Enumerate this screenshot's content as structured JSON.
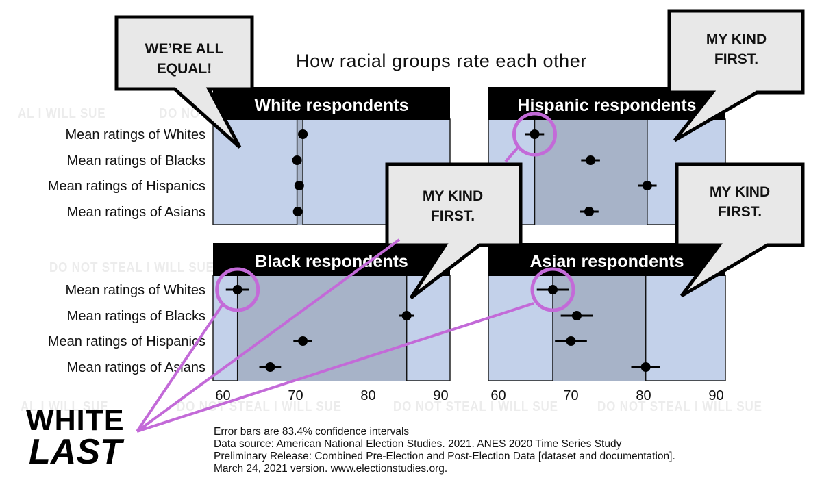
{
  "title": "How racial groups rate each other",
  "watermark": "DO NOT STEAL I WILL SUE",
  "watermark_partial": "AL I WILL SUE",
  "bubbles": [
    {
      "id": "white",
      "lines": [
        "WE’RE ALL",
        "EQUAL!"
      ]
    },
    {
      "id": "hispanic",
      "lines": [
        "MY KIND",
        "FIRST."
      ]
    },
    {
      "id": "black",
      "lines": [
        "MY KIND",
        "FIRST."
      ]
    },
    {
      "id": "asian",
      "lines": [
        "MY KIND",
        "FIRST."
      ]
    }
  ],
  "caption": {
    "line1": "WHITE",
    "line2": "LAST"
  },
  "notes": [
    "Error bars are 83.4% confidence intervals",
    "Data source: American National Election Studies. 2021. ANES 2020 Time Series Study",
    "Preliminary Release: Combined Pre-Election and Post-Election Data [dataset and documentation].",
    "March 24, 2021 version. www.electionstudies.org."
  ],
  "colors": {
    "panel_light": "#c3d1ea",
    "panel_dark": "#a7b3c8",
    "header": "#000000",
    "highlight": "#c36ad8",
    "bubble_fill": "#e8e8e8"
  },
  "chart_data": {
    "type": "scatter",
    "title": "How racial groups rate each other",
    "xlim": [
      59,
      92
    ],
    "xticks": [
      60,
      70,
      80,
      90
    ],
    "categories": [
      "Mean ratings of Whites",
      "Mean ratings of Blacks",
      "Mean ratings of Hispanics",
      "Mean ratings of Asians"
    ],
    "panels": [
      {
        "name": "White respondents",
        "row": 0,
        "col": 0,
        "values": [
          71.0,
          70.2,
          70.5,
          70.3
        ],
        "ci": [
          0.4,
          0.4,
          0.4,
          0.4
        ],
        "min_line": 70.2,
        "max_line": 71.0,
        "highlight_index": null
      },
      {
        "name": "Hispanic respondents",
        "row": 0,
        "col": 1,
        "values": [
          65.0,
          72.7,
          80.5,
          72.5
        ],
        "ci": [
          1.3,
          1.3,
          1.3,
          1.3
        ],
        "min_line": 65.0,
        "max_line": 80.5,
        "highlight_index": 0
      },
      {
        "name": "Black respondents",
        "row": 1,
        "col": 0,
        "values": [
          62.0,
          85.3,
          71.0,
          66.5
        ],
        "ci": [
          1.6,
          1.0,
          1.3,
          1.5
        ],
        "min_line": 62.0,
        "max_line": 85.3,
        "highlight_index": 0
      },
      {
        "name": "Asian respondents",
        "row": 1,
        "col": 1,
        "values": [
          67.5,
          70.8,
          70.0,
          80.3
        ],
        "ci": [
          2.2,
          2.2,
          2.2,
          2.0
        ],
        "min_line": 67.5,
        "max_line": 80.3,
        "highlight_index": 0
      }
    ]
  }
}
